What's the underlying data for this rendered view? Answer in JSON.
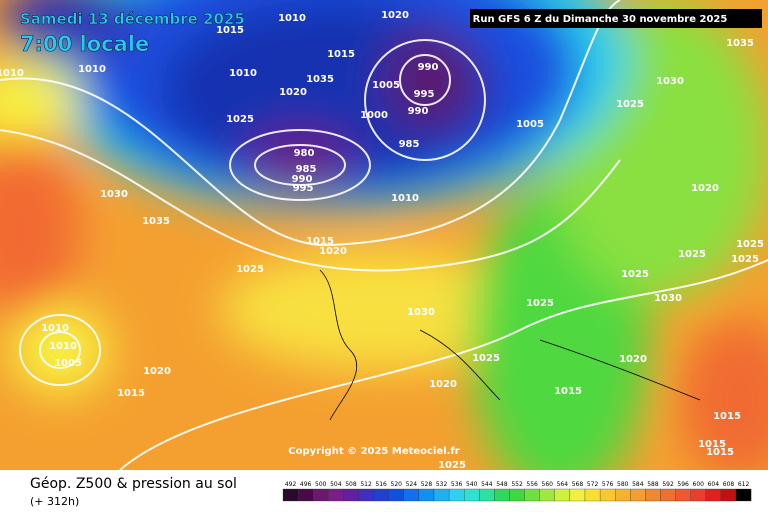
{
  "header": {
    "date": "Samedi 13 décembre 2025",
    "time": "7:00 locale",
    "run": "Run GFS 6 Z du Dimanche 30 novembre 2025"
  },
  "map": {
    "copyright": "Copyright © 2025 Meteociel.fr",
    "isobar_labels": [
      "1010",
      "1020",
      "1015",
      "1015",
      "1010",
      "1010",
      "1010",
      "990",
      "1035",
      "1020",
      "1005",
      "995",
      "1000",
      "990",
      "1025",
      "985",
      "980",
      "985",
      "990",
      "995",
      "1005",
      "1030",
      "1025",
      "1035",
      "1030",
      "1035",
      "1010",
      "1015",
      "1020",
      "1025",
      "1020",
      "1025",
      "1025",
      "1025",
      "1025",
      "1025",
      "1030",
      "1030",
      "1010",
      "1010",
      "1005",
      "1025",
      "1020",
      "1020",
      "1015",
      "1020",
      "1015",
      "1015",
      "1015",
      "1015",
      "1025"
    ]
  },
  "footer": {
    "title": "Géop. Z500 & pression au sol",
    "lead": "(+ 312h)",
    "scale": [
      492,
      496,
      500,
      504,
      508,
      512,
      516,
      520,
      524,
      528,
      532,
      536,
      540,
      544,
      548,
      552,
      556,
      560,
      564,
      568,
      572,
      576,
      580,
      584,
      588,
      592,
      596,
      600,
      604,
      608,
      612
    ]
  }
}
